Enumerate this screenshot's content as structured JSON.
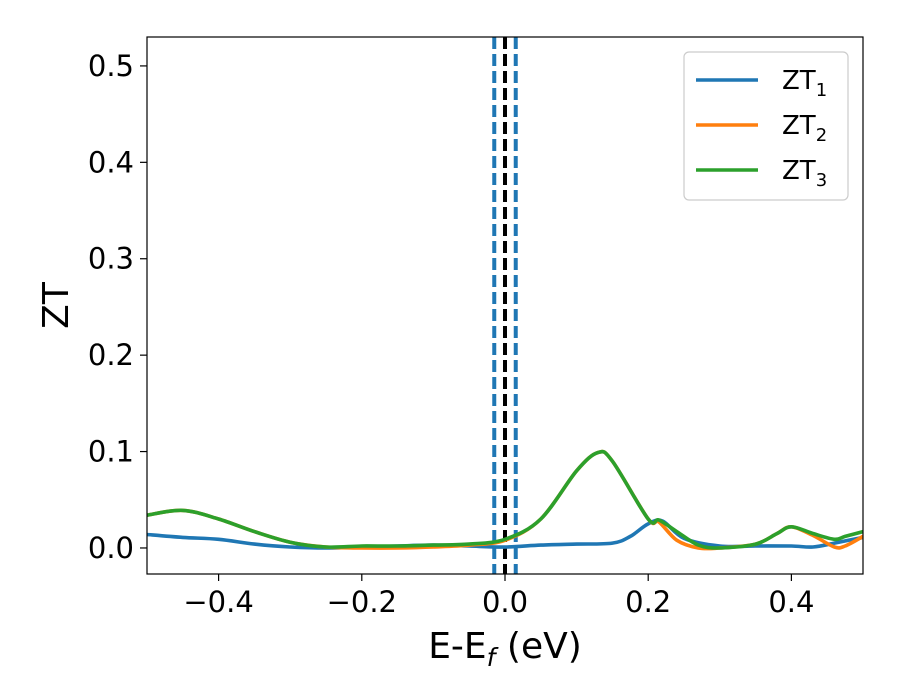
{
  "chart_data": {
    "type": "line",
    "xlabel": {
      "main": "E-E",
      "sub": "f",
      "tail": " (eV)"
    },
    "ylabel": "ZT",
    "xlim": [
      -0.5,
      0.5
    ],
    "ylim": [
      -0.027,
      0.53
    ],
    "xticks": [
      {
        "v": -0.4,
        "label": "−0.4"
      },
      {
        "v": -0.2,
        "label": "−0.2"
      },
      {
        "v": 0.0,
        "label": "0.0"
      },
      {
        "v": 0.2,
        "label": "0.2"
      },
      {
        "v": 0.4,
        "label": "0.4"
      }
    ],
    "yticks": [
      {
        "v": 0.0,
        "label": "0.0"
      },
      {
        "v": 0.1,
        "label": "0.1"
      },
      {
        "v": 0.2,
        "label": "0.2"
      },
      {
        "v": 0.3,
        "label": "0.3"
      },
      {
        "v": 0.4,
        "label": "0.4"
      },
      {
        "v": 0.5,
        "label": "0.5"
      }
    ],
    "grid": false,
    "legend_position": "top-right",
    "vlines": [
      {
        "x": 0.0,
        "color": "#000000",
        "style": "dashed"
      },
      {
        "x": -0.015,
        "color": "#1f77b4",
        "style": "dashed"
      },
      {
        "x": 0.015,
        "color": "#1f77b4",
        "style": "dashed"
      }
    ],
    "series": [
      {
        "name": "ZT",
        "sub": "1",
        "color": "#1f77b4",
        "x": [
          -0.5,
          -0.45,
          -0.4,
          -0.35,
          -0.3,
          -0.25,
          -0.2,
          -0.15,
          -0.1,
          -0.05,
          0.0,
          0.05,
          0.1,
          0.15,
          0.175,
          0.2,
          0.22,
          0.25,
          0.3,
          0.35,
          0.4,
          0.43,
          0.46,
          0.5
        ],
        "y": [
          0.014,
          0.011,
          0.009,
          0.004,
          0.001,
          0.0,
          0.001,
          0.002,
          0.003,
          0.002,
          0.001,
          0.003,
          0.004,
          0.005,
          0.012,
          0.025,
          0.028,
          0.01,
          0.002,
          0.002,
          0.002,
          0.001,
          0.005,
          0.011
        ]
      },
      {
        "name": "ZT",
        "sub": "2",
        "color": "#ff7f0e",
        "x": [
          -0.5,
          -0.45,
          -0.4,
          -0.35,
          -0.3,
          -0.25,
          -0.2,
          -0.15,
          -0.1,
          -0.05,
          0.0,
          0.05,
          0.1,
          0.13,
          0.15,
          0.2,
          0.215,
          0.24,
          0.27,
          0.3,
          0.35,
          0.38,
          0.4,
          0.43,
          0.46,
          0.475,
          0.5
        ],
        "y": [
          0.034,
          0.039,
          0.03,
          0.017,
          0.006,
          0.001,
          0.0,
          0.0,
          0.001,
          0.003,
          0.008,
          0.03,
          0.08,
          0.099,
          0.09,
          0.03,
          0.027,
          0.008,
          0.0,
          0.0,
          0.004,
          0.015,
          0.022,
          0.013,
          0.001,
          0.002,
          0.012
        ]
      },
      {
        "name": "ZT",
        "sub": "3",
        "color": "#2ca02c",
        "x": [
          -0.5,
          -0.45,
          -0.4,
          -0.35,
          -0.3,
          -0.25,
          -0.2,
          -0.15,
          -0.1,
          -0.05,
          0.0,
          0.05,
          0.1,
          0.13,
          0.15,
          0.2,
          0.215,
          0.24,
          0.27,
          0.3,
          0.35,
          0.38,
          0.4,
          0.43,
          0.46,
          0.475,
          0.5
        ],
        "y": [
          0.034,
          0.039,
          0.03,
          0.017,
          0.006,
          0.001,
          0.002,
          0.002,
          0.003,
          0.004,
          0.009,
          0.03,
          0.08,
          0.099,
          0.09,
          0.03,
          0.029,
          0.017,
          0.003,
          0.0,
          0.004,
          0.015,
          0.022,
          0.015,
          0.009,
          0.012,
          0.017
        ]
      }
    ]
  }
}
